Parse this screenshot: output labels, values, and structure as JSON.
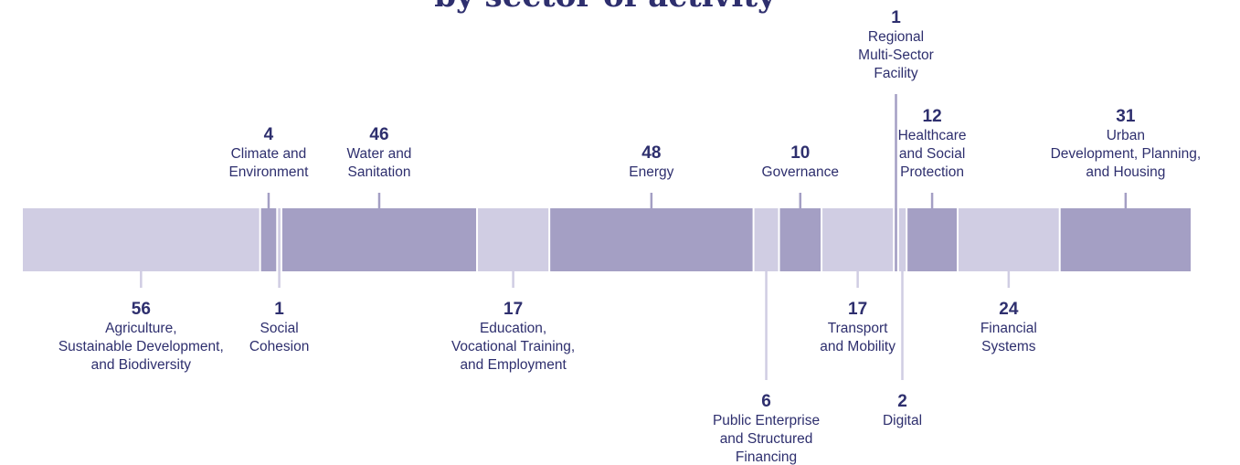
{
  "chart_data": {
    "type": "stacked-bar",
    "title": "by sector of activity",
    "categories": [
      [
        "Agriculture,",
        "Sustainable Development,",
        "and Biodiversity"
      ],
      [
        "Climate and",
        "Environment"
      ],
      [
        "Social",
        "Cohesion"
      ],
      [
        "Water and",
        "Sanitation"
      ],
      [
        "Education,",
        "Vocational Training,",
        "and Employment"
      ],
      [
        "Energy"
      ],
      [
        "Public Enterprise",
        "and Structured",
        "Financing"
      ],
      [
        "Governance"
      ],
      [
        "Transport",
        "and Mobility"
      ],
      [
        "Regional",
        "Multi-Sector",
        "Facility"
      ],
      [
        "Digital"
      ],
      [
        "Healthcare",
        "and Social",
        "Protection"
      ],
      [
        "Financial",
        "Systems"
      ],
      [
        "Urban",
        "Development, Planning,",
        "and Housing"
      ]
    ],
    "values": [
      56,
      4,
      1,
      46,
      17,
      48,
      6,
      10,
      17,
      1,
      2,
      12,
      24,
      31
    ],
    "colors": [
      "#d0cde3",
      "#a49fc4"
    ]
  }
}
